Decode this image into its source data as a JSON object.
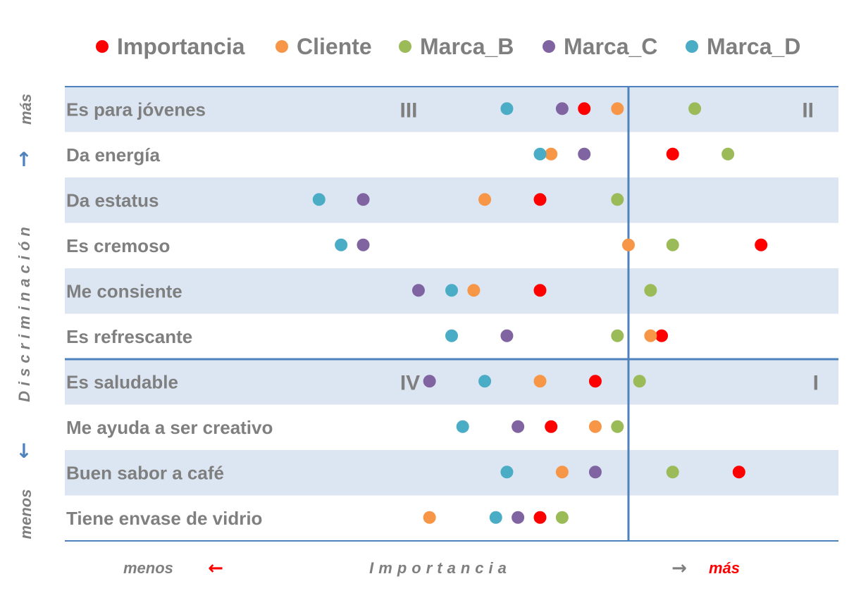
{
  "colors": {
    "Importancia": "#ff0000",
    "Cliente": "#f79646",
    "Marca_B": "#9bbb59",
    "Marca_C": "#8064a2",
    "Marca_D": "#4bacc6",
    "axis_line": "#4f81bd",
    "band": "#dce6f2",
    "text": "#7f7f7f"
  },
  "chart_data": {
    "type": "scatter",
    "legend_position": "top",
    "categories": [
      "Es para jóvenes",
      "Da energía",
      "Da estatus",
      "Es cremoso",
      "Me consiente",
      "Es refrescante",
      "Es saludable",
      "Me ayuda a ser creativo",
      "Buen sabor a café",
      "Tiene envase de vidrio"
    ],
    "series": [
      {
        "name": "Importancia",
        "values": [
          4.7,
          5.5,
          4.3,
          6.3,
          4.3,
          5.4,
          4.8,
          4.4,
          6.1,
          4.3
        ]
      },
      {
        "name": "Cliente",
        "values": [
          5.0,
          4.4,
          3.8,
          5.1,
          3.7,
          5.3,
          4.3,
          4.8,
          4.5,
          3.3
        ]
      },
      {
        "name": "Marca_B",
        "values": [
          5.7,
          6.0,
          5.0,
          5.5,
          5.3,
          5.0,
          5.2,
          5.0,
          5.5,
          4.5
        ]
      },
      {
        "name": "Marca_C",
        "values": [
          4.5,
          4.7,
          2.7,
          2.7,
          3.2,
          4.0,
          3.3,
          4.1,
          4.8,
          4.1
        ]
      },
      {
        "name": "Marca_D",
        "values": [
          4.0,
          4.3,
          2.3,
          2.5,
          3.5,
          3.5,
          3.8,
          3.6,
          4.0,
          3.9
        ]
      }
    ],
    "x_range": [
      0,
      7
    ],
    "x_divider": 5.1,
    "y_divider_after_category": 6,
    "quadrants": [
      "III",
      "II",
      "IV",
      "I"
    ],
    "x_axis": {
      "title": "Importancia",
      "low_label": "menos",
      "high_label": "más",
      "low_arrow": "←",
      "high_arrow": "→"
    },
    "y_axis": {
      "title": "Discriminación",
      "high_label": "más",
      "low_label": "menos",
      "up_arrow": "↑",
      "down_arrow": "↓"
    }
  }
}
